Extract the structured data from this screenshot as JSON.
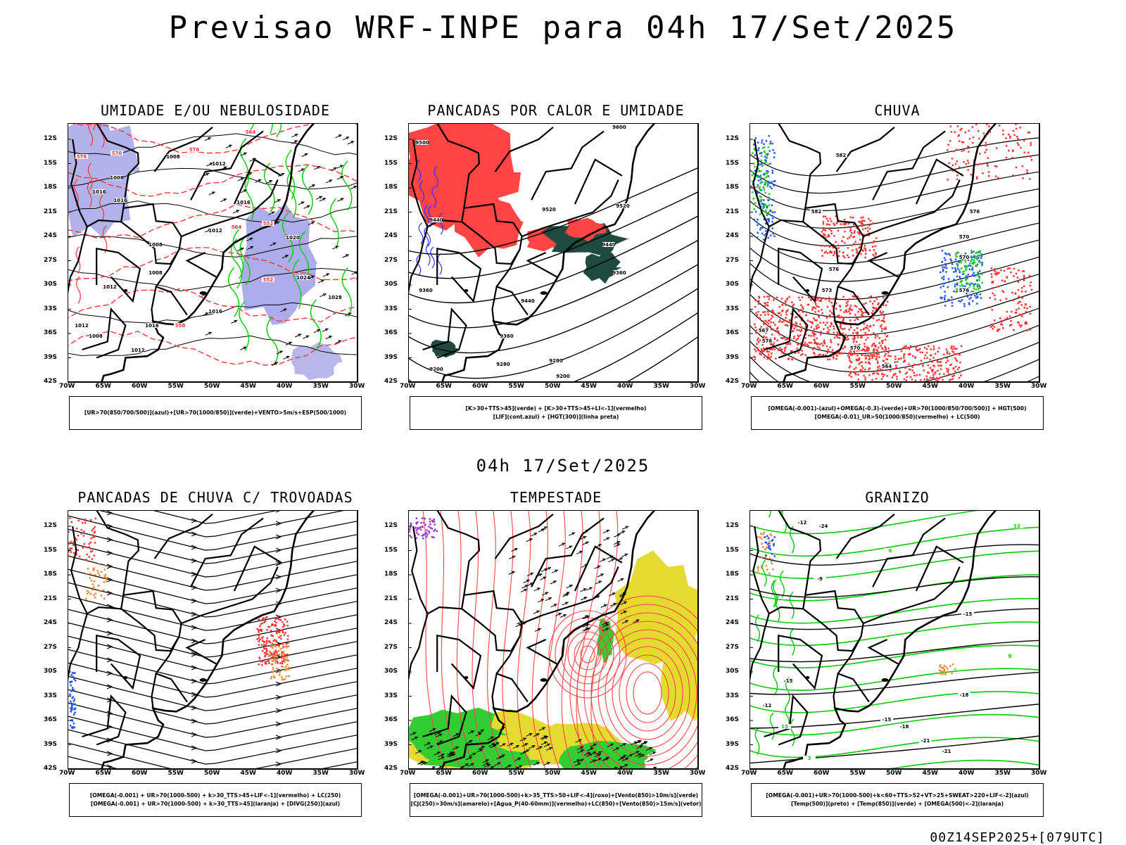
{
  "title": "Previsao WRF-INPE  para 04h 17/Set/2025",
  "mid_title": "04h 17/Set/2025",
  "run_label": "00Z14SEP2025+[079UTC]",
  "lat_ticks": [
    "12S",
    "15S",
    "18S",
    "21S",
    "24S",
    "27S",
    "30S",
    "33S",
    "36S",
    "39S",
    "42S"
  ],
  "lon_ticks": [
    "70W",
    "65W",
    "60W",
    "55W",
    "50W",
    "45W",
    "40W",
    "35W",
    "30W"
  ],
  "panels": [
    {
      "title": "UMIDADE E/OU NEBULOSIDADE",
      "legend": [
        "[UR>70(850/700/500)](azul)+[UR>70(1000/850)](verde)+VENTO>5m/s+ESP(500/1000)"
      ],
      "contour_labels": [
        "1008",
        "1008",
        "1012",
        "1016",
        "1016",
        "1016",
        "1012",
        "1008",
        "1012",
        "1008",
        "1016",
        "1020",
        "1024",
        "1028",
        "1012",
        "1016",
        "1008",
        "1012",
        "564",
        "558",
        "552",
        "576",
        "570",
        "576",
        "552",
        "564"
      ],
      "colors": {
        "fill_blue": "#9999e6",
        "contour_green": "#00cc00",
        "contour_red": "#ff3333",
        "contour_black": "#000000"
      }
    },
    {
      "title": "PANCADAS POR CALOR E UMIDADE",
      "legend": [
        "[K>30+TTS>45](verde) + [K>30+TTS>45+LI<-1](vermelho)",
        "[LIF](cont.azul) + [HGT(300)](linha preta)"
      ],
      "contour_labels": [
        "9600",
        "9500",
        "9520",
        "9520",
        "9440",
        "9440",
        "9440",
        "9360",
        "9360",
        "9360",
        "9280",
        "9200",
        "9200",
        "9280"
      ],
      "colors": {
        "fill_red": "#ff4444",
        "fill_darkgreen": "#1f4a3f",
        "contour_blue": "#3333ff",
        "contour_black": "#000000"
      }
    },
    {
      "title": "CHUVA",
      "legend": [
        "[OMEGA(-0.001)-(azul)+OMEGA(-0.3)-(verde)+UR>70(1000/850/700/500)] + HGT(500)",
        "[OMEGA(-0.01)_UR>50(1000/850)(vermelho) + LC(500)"
      ],
      "contour_labels": [
        "582",
        "582",
        "576",
        "576",
        "570",
        "570",
        "576",
        "573",
        "567",
        "564",
        "576",
        "570"
      ],
      "colors": {
        "dots_red": "#ff3333",
        "dots_blue": "#2255ff",
        "dots_green": "#22cc22",
        "contour_black": "#000000"
      }
    },
    {
      "title": "PANCADAS DE CHUVA C/ TROVOADAS",
      "legend": [
        "[OMEGA(-0.001) + UR>70(1000-500) + k>30_TTS>45+LIF<-1](vermelho) + LC(250)",
        "[OMEGA(-0.001) + UR>70(1000-500) + k>30_TTS>45](laranja) + [DIVG(250)](azul)"
      ],
      "colors": {
        "dots_red": "#ff3333",
        "dots_orange": "#ee8833",
        "dots_blue": "#2255ff",
        "streamline": "#000000"
      }
    },
    {
      "title": "TEMPESTADE",
      "legend": [
        "[OMEGA(-0.001)+UR>70(1000-500)+k>35_TTS>50+LIF<-4](roxo)+[Vento(850)>10m/s](verde)",
        "[CJ(250)>30m/s](amarelo)+[Agua_P(40-60mm)](vermelho)+LC(850)+[Vento(850)>15m/s](vetor)"
      ],
      "colors": {
        "fill_yellow": "#e6d930",
        "fill_green": "#33cc33",
        "streamline_red": "#ff4444",
        "dots_purple": "#9933cc",
        "vector": "#000000"
      }
    },
    {
      "title": "GRANIZO",
      "legend": [
        "[OMEGA(-0.001)+UR>70(1000-500)+k<60+TTS>52+VT>25+SWEAT>220+LIF<-2](azul)",
        "[Temp(500)](preto) + [Temp(850)](verde) + [OMEGA(500)<-2](laranja)"
      ],
      "contour_labels": [
        "-24",
        "-21",
        "-18",
        "-15",
        "-12",
        "-9",
        "-15",
        "-18",
        "-21",
        "-12",
        "-15",
        "6",
        "9",
        "12",
        "15",
        "3"
      ],
      "colors": {
        "contour_green": "#00cc00",
        "contour_black": "#000000",
        "dots_orange": "#ee8833",
        "dots_blue": "#2255ff"
      }
    }
  ]
}
